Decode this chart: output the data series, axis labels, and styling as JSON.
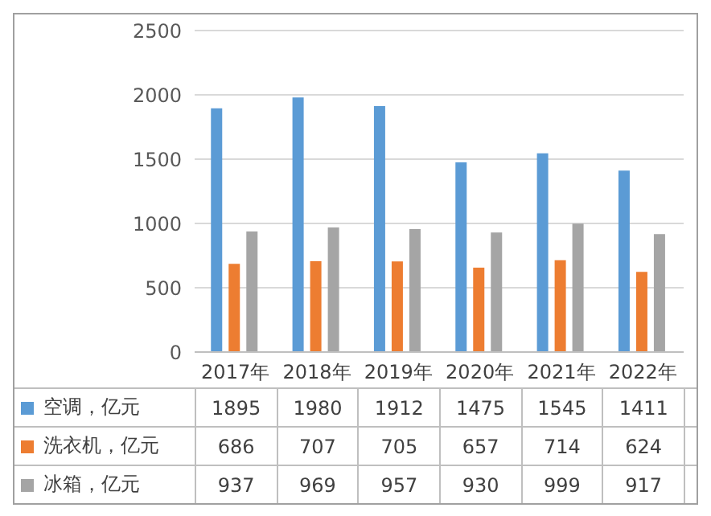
{
  "chart_data": {
    "type": "bar",
    "categories": [
      "2017年",
      "2018年",
      "2019年",
      "2020年",
      "2021年",
      "2022年"
    ],
    "series": [
      {
        "name": "空调，亿元",
        "color": "#5b9bd5",
        "values": [
          1895,
          1980,
          1912,
          1475,
          1545,
          1411
        ]
      },
      {
        "name": "洗衣机，亿元",
        "color": "#ed7d31",
        "values": [
          686,
          707,
          705,
          657,
          714,
          624
        ]
      },
      {
        "name": "冰箱，亿元",
        "color": "#a5a5a5",
        "values": [
          937,
          969,
          957,
          930,
          999,
          917
        ]
      }
    ],
    "ylim": [
      0,
      2500
    ],
    "yticks": [
      0,
      500,
      1000,
      1500,
      2000,
      2500
    ],
    "grid": "y",
    "legend": "bottom",
    "data_labels": true
  }
}
